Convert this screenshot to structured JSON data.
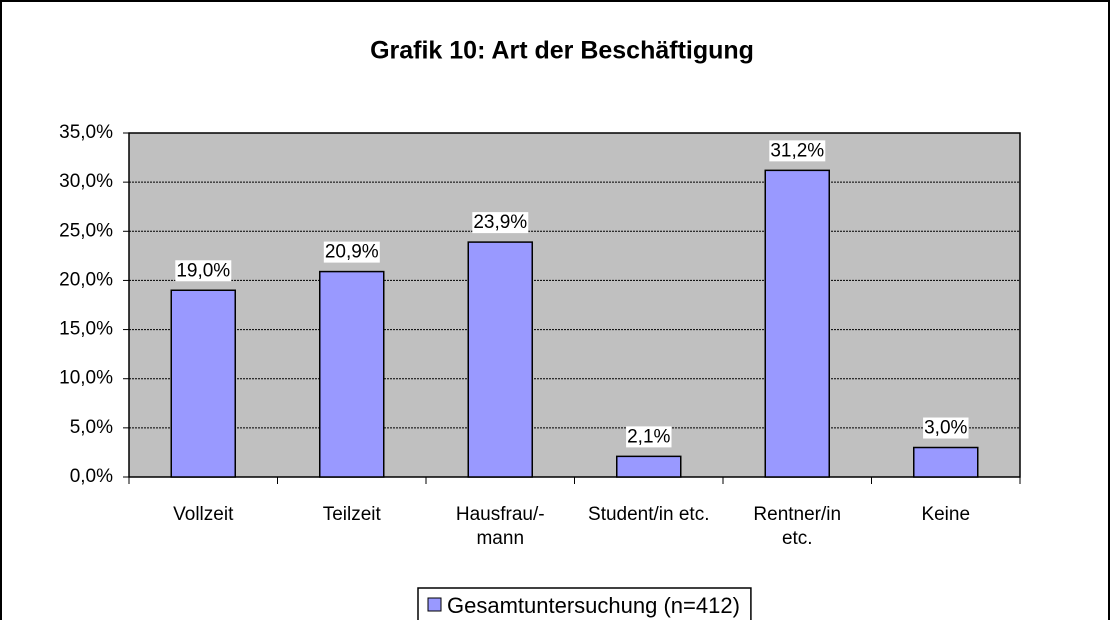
{
  "chart_data": {
    "type": "bar",
    "title": "Grafik 10: Art der Beschäftigung",
    "categories": [
      "Vollzeit",
      "Teilzeit",
      "Hausfrau/-\nmann",
      "Student/in etc.",
      "Rentner/in\netc.",
      "Keine"
    ],
    "series": [
      {
        "name": "Gesamtuntersuchung (n=412)",
        "color": "#9999ff",
        "values": [
          19.0,
          20.9,
          23.9,
          2.1,
          31.2,
          3.0
        ],
        "value_labels": [
          "19,0%",
          "20,9%",
          "23,9%",
          "2,1%",
          "31,2%",
          "3,0%"
        ]
      }
    ],
    "ylim": [
      0,
      35
    ],
    "yticks": [
      {
        "value": 0,
        "label": "0,0%"
      },
      {
        "value": 5,
        "label": "5,0%"
      },
      {
        "value": 10,
        "label": "10,0%"
      },
      {
        "value": 15,
        "label": "15,0%"
      },
      {
        "value": 20,
        "label": "20,0%"
      },
      {
        "value": 25,
        "label": "25,0%"
      },
      {
        "value": 30,
        "label": "30,0%"
      },
      {
        "value": 35,
        "label": "35,0%"
      }
    ],
    "grid": true,
    "legend": "bottom"
  }
}
